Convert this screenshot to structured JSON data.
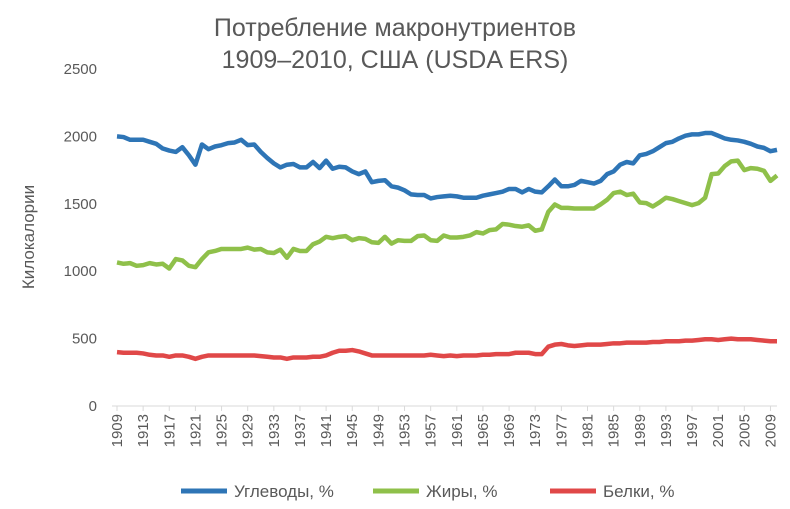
{
  "chart_data": {
    "type": "line",
    "title": [
      "Потребление макронутриентов",
      "1909–2010, США (USDA ERS)"
    ],
    "y_label": "Килокалории",
    "x": [
      1909,
      1910,
      1911,
      1912,
      1913,
      1914,
      1915,
      1916,
      1917,
      1918,
      1919,
      1920,
      1921,
      1922,
      1923,
      1924,
      1925,
      1926,
      1927,
      1928,
      1929,
      1930,
      1931,
      1932,
      1933,
      1934,
      1935,
      1936,
      1937,
      1938,
      1939,
      1940,
      1941,
      1942,
      1943,
      1944,
      1945,
      1946,
      1947,
      1948,
      1949,
      1950,
      1951,
      1952,
      1953,
      1954,
      1955,
      1956,
      1957,
      1958,
      1959,
      1960,
      1961,
      1962,
      1963,
      1964,
      1965,
      1966,
      1967,
      1968,
      1969,
      1970,
      1971,
      1972,
      1973,
      1974,
      1975,
      1976,
      1977,
      1978,
      1979,
      1980,
      1981,
      1982,
      1983,
      1984,
      1985,
      1986,
      1987,
      1988,
      1989,
      1990,
      1991,
      1992,
      1993,
      1994,
      1995,
      1996,
      1997,
      1998,
      1999,
      2000,
      2001,
      2002,
      2003,
      2004,
      2005,
      2006,
      2007,
      2008,
      2009,
      2010
    ],
    "xlim": [
      1909,
      2010
    ],
    "xticks": [
      1909,
      1913,
      1917,
      1921,
      1925,
      1929,
      1933,
      1937,
      1941,
      1945,
      1949,
      1953,
      1957,
      1961,
      1965,
      1969,
      1973,
      1977,
      1981,
      1985,
      1989,
      1993,
      1997,
      2001,
      2005,
      2009
    ],
    "ylim": [
      0,
      2500
    ],
    "yticks": [
      0,
      500,
      1000,
      1500,
      2000,
      2500
    ],
    "grid": false,
    "legend": "bottom",
    "series": [
      {
        "name": "Углеводы, %",
        "color": "#2e75b6",
        "values": [
          2000,
          1995,
          1975,
          1975,
          1975,
          1960,
          1945,
          1910,
          1895,
          1885,
          1920,
          1860,
          1790,
          1940,
          1905,
          1925,
          1935,
          1950,
          1955,
          1975,
          1935,
          1940,
          1885,
          1840,
          1800,
          1770,
          1790,
          1795,
          1770,
          1770,
          1810,
          1765,
          1820,
          1760,
          1775,
          1770,
          1740,
          1720,
          1740,
          1660,
          1670,
          1675,
          1630,
          1620,
          1600,
          1570,
          1565,
          1565,
          1540,
          1550,
          1555,
          1560,
          1555,
          1545,
          1545,
          1545,
          1560,
          1570,
          1580,
          1590,
          1610,
          1610,
          1585,
          1610,
          1590,
          1585,
          1630,
          1680,
          1630,
          1630,
          1640,
          1670,
          1660,
          1650,
          1670,
          1720,
          1740,
          1790,
          1810,
          1800,
          1860,
          1870,
          1890,
          1920,
          1950,
          1960,
          1985,
          2005,
          2015,
          2015,
          2025,
          2025,
          2005,
          1985,
          1975,
          1970,
          1960,
          1945,
          1925,
          1915,
          1890,
          1900
        ]
      },
      {
        "name": "Жиры, %",
        "color": "#8fc04a",
        "values": [
          1065,
          1055,
          1060,
          1040,
          1045,
          1060,
          1050,
          1055,
          1020,
          1090,
          1080,
          1040,
          1030,
          1090,
          1140,
          1150,
          1165,
          1165,
          1165,
          1165,
          1175,
          1160,
          1165,
          1140,
          1135,
          1160,
          1100,
          1165,
          1150,
          1150,
          1200,
          1220,
          1255,
          1245,
          1255,
          1260,
          1230,
          1245,
          1240,
          1215,
          1210,
          1255,
          1205,
          1230,
          1225,
          1225,
          1260,
          1265,
          1230,
          1225,
          1265,
          1250,
          1250,
          1255,
          1265,
          1290,
          1280,
          1305,
          1310,
          1350,
          1345,
          1335,
          1330,
          1340,
          1300,
          1310,
          1440,
          1495,
          1470,
          1470,
          1465,
          1465,
          1465,
          1465,
          1495,
          1530,
          1580,
          1590,
          1565,
          1575,
          1510,
          1505,
          1480,
          1510,
          1545,
          1535,
          1520,
          1505,
          1490,
          1505,
          1545,
          1720,
          1725,
          1780,
          1815,
          1820,
          1750,
          1765,
          1760,
          1745,
          1670,
          1710
        ]
      },
      {
        "name": "Белки, %",
        "color": "#e04848",
        "values": [
          400,
          395,
          395,
          395,
          390,
          380,
          375,
          375,
          365,
          375,
          375,
          365,
          350,
          365,
          375,
          375,
          375,
          375,
          375,
          375,
          375,
          375,
          370,
          365,
          360,
          360,
          350,
          360,
          360,
          360,
          365,
          365,
          375,
          395,
          410,
          410,
          415,
          405,
          390,
          375,
          375,
          375,
          375,
          375,
          375,
          375,
          375,
          375,
          380,
          375,
          370,
          375,
          370,
          375,
          375,
          375,
          380,
          380,
          385,
          385,
          385,
          395,
          395,
          395,
          385,
          385,
          440,
          455,
          460,
          450,
          445,
          450,
          455,
          455,
          455,
          460,
          465,
          465,
          470,
          470,
          470,
          470,
          475,
          475,
          480,
          480,
          480,
          485,
          485,
          490,
          495,
          495,
          490,
          495,
          500,
          495,
          495,
          495,
          490,
          485,
          480,
          480
        ]
      }
    ]
  }
}
